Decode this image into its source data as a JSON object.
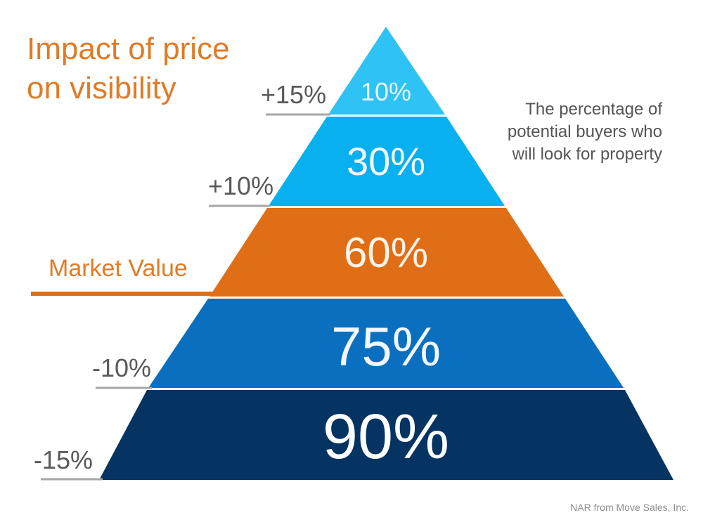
{
  "title": {
    "line1": "Impact of price",
    "line2": "on visibility"
  },
  "caption": {
    "line1": "The percentage of",
    "line2": "potential buyers who",
    "line3": "will look for property"
  },
  "source": "NAR from Move Sales, Inc.",
  "colors": {
    "title": "#e07b26",
    "tier_1": "#2fc2f5",
    "tier_2": "#08b0ef",
    "market_value": "#e06e16",
    "tier_4": "#0a6fbe",
    "tier_5": "#053462",
    "guide_line": "#a6a6a6"
  },
  "tiers": [
    {
      "value": "10%",
      "price_label": "+15%"
    },
    {
      "value": "30%",
      "price_label": "+10%"
    },
    {
      "value": "60%",
      "price_label": "Market Value"
    },
    {
      "value": "75%",
      "price_label": "-10%"
    },
    {
      "value": "90%",
      "price_label": "-15%"
    }
  ]
}
